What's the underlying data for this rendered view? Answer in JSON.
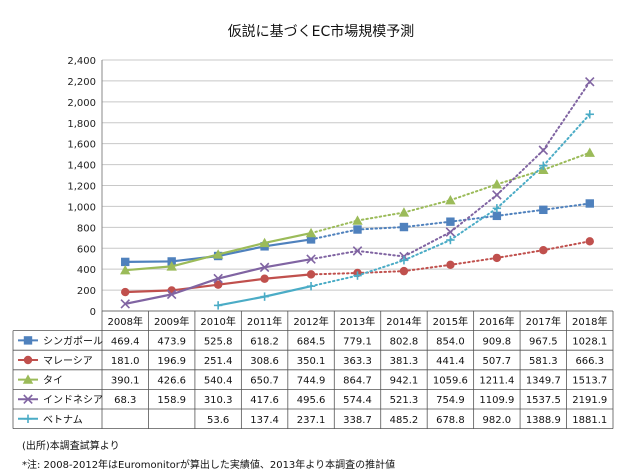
{
  "chart_data": {
    "type": "line",
    "title": "仮説に基づくEC市場規模予測",
    "categories": [
      "2008年",
      "2009年",
      "2010年",
      "2011年",
      "2012年",
      "2013年",
      "2014年",
      "2015年",
      "2016年",
      "2017年",
      "2018年"
    ],
    "ylim": [
      0,
      2400
    ],
    "yticks": [
      0,
      200,
      400,
      600,
      800,
      1000,
      1200,
      1400,
      1600,
      1800,
      2000,
      2200,
      2400
    ],
    "ytick_labels": [
      "0",
      "200",
      "400",
      "600",
      "800",
      "1,000",
      "1,200",
      "1,400",
      "1,600",
      "1,800",
      "2,000",
      "2,200",
      "2,400"
    ],
    "actual_through": "2012年",
    "grid": true,
    "series": [
      {
        "name": "シンガポール",
        "color": "#4F81BD",
        "marker": "square",
        "values": [
          469.4,
          473.9,
          525.8,
          618.2,
          684.5,
          779.1,
          802.8,
          854.0,
          909.8,
          967.5,
          1028.1
        ],
        "labels": [
          "469.4",
          "473.9",
          "525.8",
          "618.2",
          "684.5",
          "779.1",
          "802.8",
          "854.0",
          "909.8",
          "967.5",
          "1028.1"
        ]
      },
      {
        "name": "マレーシア",
        "color": "#C0504D",
        "marker": "circle",
        "values": [
          181.0,
          196.9,
          251.4,
          308.6,
          350.1,
          363.3,
          381.3,
          441.4,
          507.7,
          581.3,
          666.3
        ],
        "labels": [
          "181.0",
          "196.9",
          "251.4",
          "308.6",
          "350.1",
          "363.3",
          "381.3",
          "441.4",
          "507.7",
          "581.3",
          "666.3"
        ]
      },
      {
        "name": "タイ",
        "color": "#9BBB59",
        "marker": "triangle",
        "values": [
          390.1,
          426.6,
          540.4,
          650.7,
          744.9,
          864.7,
          942.1,
          1059.6,
          1211.4,
          1349.7,
          1513.7
        ],
        "labels": [
          "390.1",
          "426.6",
          "540.4",
          "650.7",
          "744.9",
          "864.7",
          "942.1",
          "1059.6",
          "1211.4",
          "1349.7",
          "1513.7"
        ]
      },
      {
        "name": "インドネシア",
        "color": "#8064A2",
        "marker": "x",
        "values": [
          68.3,
          158.9,
          310.3,
          417.6,
          495.6,
          574.4,
          521.3,
          754.9,
          1109.9,
          1537.5,
          2191.9
        ],
        "labels": [
          "68.3",
          "158.9",
          "310.3",
          "417.6",
          "495.6",
          "574.4",
          "521.3",
          "754.9",
          "1109.9",
          "1537.5",
          "2191.9"
        ]
      },
      {
        "name": "ベトナム",
        "color": "#4BACC6",
        "marker": "plus",
        "values": [
          null,
          null,
          53.6,
          137.4,
          237.1,
          338.7,
          485.2,
          678.8,
          982.0,
          1388.9,
          1881.1
        ],
        "labels": [
          "",
          "",
          "53.6",
          "137.4",
          "237.1",
          "338.7",
          "485.2",
          "678.8",
          "982.0",
          "1388.9",
          "1881.1"
        ]
      }
    ]
  },
  "notes": {
    "source": "(出所)本調査試算より",
    "footnote": "*注: 2008-2012年はEuromonitorが算出した実績値、2013年より本調査の推計値"
  }
}
